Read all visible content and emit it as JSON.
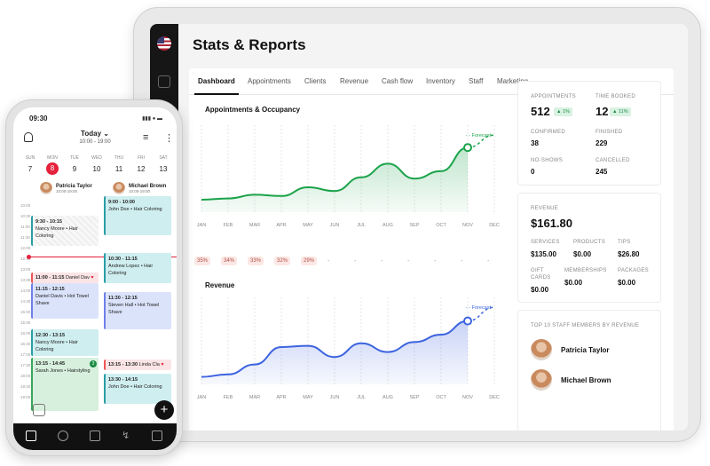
{
  "tablet": {
    "page_title": "Stats & Reports",
    "tabs": [
      "Dashboard",
      "Appointments",
      "Clients",
      "Revenue",
      "Cash flow",
      "Inventory",
      "Staff",
      "Marketing"
    ],
    "active_tab": "Dashboard"
  },
  "chart_data": [
    {
      "type": "area",
      "title": "Appointments & Occupancy",
      "x": [
        "JAN",
        "FEB",
        "MAR",
        "APR",
        "MAY",
        "JUN",
        "JUL",
        "AUG",
        "SEP",
        "OCT",
        "NOV",
        "DEC"
      ],
      "values": [
        10,
        11,
        14,
        13,
        20,
        17,
        28,
        39,
        27,
        33,
        52,
        62
      ],
      "forecast_label": "Forecast",
      "forecast_from_index": 10,
      "occupancy": [
        "35%",
        "34%",
        "33%",
        "32%",
        "29%",
        "-",
        "-",
        "-",
        "-",
        "-",
        "-",
        "-"
      ],
      "color": "#1ba34a"
    },
    {
      "type": "area",
      "title": "Revenue",
      "x": [
        "JAN",
        "FEB",
        "MAR",
        "APR",
        "MAY",
        "JUN",
        "JUL",
        "AUG",
        "SEP",
        "OCT",
        "NOV",
        "DEC"
      ],
      "values": [
        6,
        8,
        16,
        30,
        31,
        22,
        33,
        26,
        34,
        40,
        51,
        62
      ],
      "forecast_label": "Forecast",
      "forecast_from_index": 10,
      "color": "#3c63e0"
    }
  ],
  "stats": {
    "appointments_label": "APPOINTMENTS",
    "appointments": "512",
    "appointments_change": "1%",
    "time_booked_label": "TIME BOOKED",
    "time_booked": "12",
    "time_booked_change": "11%",
    "confirmed_label": "CONFIRMED",
    "confirmed": "38",
    "finished_label": "FINISHED",
    "finished": "229",
    "noshows_label": "NO-SHOWS",
    "noshows": "0",
    "cancelled_label": "CANCELLED",
    "cancelled": "245"
  },
  "revenue": {
    "label": "REVENUE",
    "total": "$161.80",
    "services_label": "SERVICES",
    "services": "$135.00",
    "products_label": "PRODUCTS",
    "products": "$0.00",
    "tips_label": "TIPS",
    "tips": "$26.80",
    "giftcards_label_1": "GIFT",
    "giftcards_label_2": "CARDS",
    "giftcards": "$0.00",
    "memberships_label": "MEMBERSHIPS",
    "memberships": "$0.00",
    "packages_label": "PACKAGES",
    "packages": "$0.00"
  },
  "top_staff": {
    "title": "TOP 10 STAFF MEMBERS BY REVENUE",
    "members": [
      "Patricia Taylor",
      "Michael Brown"
    ]
  },
  "phone": {
    "time": "09:30",
    "today": "Today",
    "today_range": "10:00 - 19:00",
    "day_heads": [
      "SUN",
      "MON",
      "TUE",
      "WED",
      "THU",
      "FRI",
      "SAT"
    ],
    "day_nums": [
      "7",
      "8",
      "9",
      "10",
      "11",
      "12",
      "13"
    ],
    "selected_day": "8",
    "staff": [
      {
        "name": "Patricia Taylor",
        "hours": "10:00-19:00"
      },
      {
        "name": "Michael Brown",
        "hours": "10:00-19:00"
      }
    ],
    "hours": [
      "10:00",
      "10:30",
      "11:00",
      "11:30",
      "12:00",
      "12:30",
      "13:00",
      "13:30",
      "14:00",
      "14:30",
      "15:00",
      "15:30",
      "16:00",
      "16:30",
      "17:00",
      "17:30",
      "18:00",
      "18:30",
      "19:00"
    ],
    "appointments": [
      {
        "time": "9:30 - 10:15",
        "text": "Nancy Moore • Hair Coloring"
      },
      {
        "time": "9:00 - 10:00",
        "text": "John Doe • Hair Coloring"
      },
      {
        "time": "10:30 - 11:15",
        "text": "Andrew Lopez • Hair Coloring"
      },
      {
        "time": "11:00 - 11:15",
        "text": "Daniel Dav"
      },
      {
        "time": "11:15 - 12:15",
        "text": "Daniel Davis • Hot Towel Shave"
      },
      {
        "time": "11:30 - 12:15",
        "text": "Steven Hall • Hot Towel Shave"
      },
      {
        "time": "12:30 - 13:15",
        "text": "Nancy Moore • Hair Coloring"
      },
      {
        "time": "13:15 - 14:45",
        "text": "Sarah Jones • Hairstyling"
      },
      {
        "time": "13:15 - 13:30",
        "text": "Linda Cla"
      },
      {
        "time": "13:30 - 14:15",
        "text": "John Doe • Hair Coloring"
      }
    ],
    "badge_count": "3"
  }
}
